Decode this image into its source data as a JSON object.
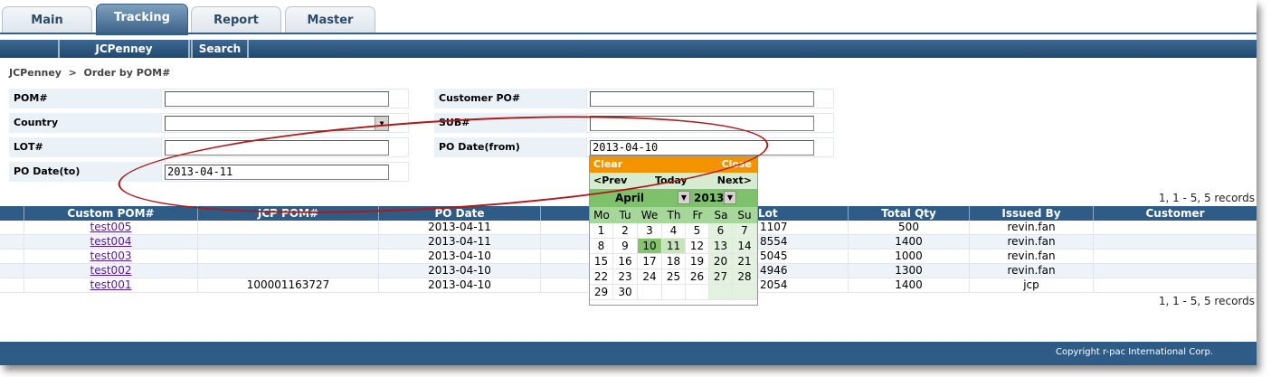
{
  "tabs": [
    "Main",
    "Tracking",
    "Report",
    "Master"
  ],
  "active_tab": "Tracking",
  "subnav": [
    "JCPenney",
    "Search"
  ],
  "breadcrumb": "JCPenney  >  Order by POM#",
  "form": {
    "pom_label": "POM#",
    "pom_value": "",
    "country_label": "Country",
    "country_value": "",
    "lot_label": "LOT#",
    "lot_value": "",
    "po_date_to_label": "PO Date(to)",
    "po_date_to_value": "2013-04-11",
    "customer_po_label": "Customer PO#",
    "customer_po_value": "",
    "sub_label": "SUB#",
    "sub_value": "",
    "po_date_from_label": "PO Date(from)",
    "po_date_from_value": "2013-04-10"
  },
  "records_text": "1, 1 - 5, 5 records",
  "table": {
    "headers": [
      "Custom POM#",
      "JCP POM#",
      "PO Date",
      "",
      "Lot",
      "Total Qty",
      "Issued By",
      "Customer"
    ],
    "rows": [
      {
        "custom_pom": "test005",
        "jcp_pom": "",
        "po_date": "2013-04-11",
        "lot": "1107",
        "total_qty": "500",
        "issued_by": "revin.fan",
        "customer": ""
      },
      {
        "custom_pom": "test004",
        "jcp_pom": "",
        "po_date": "2013-04-11",
        "lot": "8554",
        "total_qty": "1400",
        "issued_by": "revin.fan",
        "customer": ""
      },
      {
        "custom_pom": "test003",
        "jcp_pom": "",
        "po_date": "2013-04-10",
        "lot": "5045",
        "total_qty": "1000",
        "issued_by": "revin.fan",
        "customer": ""
      },
      {
        "custom_pom": "test002",
        "jcp_pom": "",
        "po_date": "2013-04-10",
        "lot": "4946",
        "total_qty": "1300",
        "issued_by": "revin.fan",
        "customer": ""
      },
      {
        "custom_pom": "test001",
        "jcp_pom": "100001163727",
        "po_date": "2013-04-10",
        "lot": "2054",
        "total_qty": "1400",
        "issued_by": "jcp",
        "customer": ""
      }
    ]
  },
  "calendar": {
    "clear": "Clear",
    "close": "Close",
    "prev": "<Prev",
    "today": "Today",
    "next": "Next>",
    "month": "April",
    "year": "2013",
    "dow": [
      "Mo",
      "Tu",
      "We",
      "Th",
      "Fr",
      "Sa",
      "Su"
    ],
    "days": [
      [
        "1",
        "2",
        "3",
        "4",
        "5",
        "6",
        "7"
      ],
      [
        "8",
        "9",
        "10",
        "11",
        "12",
        "13",
        "14"
      ],
      [
        "15",
        "16",
        "17",
        "18",
        "19",
        "20",
        "21"
      ],
      [
        "22",
        "23",
        "24",
        "25",
        "26",
        "27",
        "28"
      ],
      [
        "29",
        "30",
        "",
        "",
        "",
        "",
        ""
      ]
    ],
    "selected_day": "10",
    "highlight_day": "11"
  },
  "footer": "Copyright r-pac International Corp.",
  "colors": {
    "header_blue": "#2e5c86",
    "calendar_orange": "#f39300",
    "calendar_green": "#7dc26a",
    "annotation_red": "#b01818"
  }
}
